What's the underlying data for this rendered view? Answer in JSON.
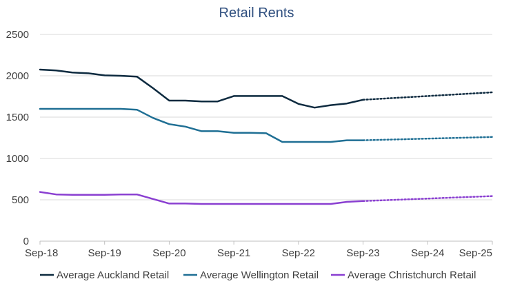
{
  "chart_data": {
    "type": "line",
    "title": "Retail Rents",
    "xlabel": "",
    "ylabel": "",
    "ylim": [
      0,
      2500
    ],
    "y_ticks": [
      0,
      500,
      1000,
      1500,
      2000,
      2500
    ],
    "x_range": [
      "2018-09",
      "2025-09"
    ],
    "x_tick_labels": [
      "Sep-18",
      "Sep-19",
      "Sep-20",
      "Sep-21",
      "Sep-22",
      "Sep-23",
      "Sep-24",
      "Sep-25"
    ],
    "grid": "horizontal",
    "legend_position": "bottom",
    "series": [
      {
        "name": "Average Auckland Retail",
        "color": "#0d2a3f",
        "actual": [
          [
            "2018-09",
            2075
          ],
          [
            "2018-12",
            2065
          ],
          [
            "2019-03",
            2040
          ],
          [
            "2019-06",
            2030
          ],
          [
            "2019-09",
            2005
          ],
          [
            "2019-12",
            2000
          ],
          [
            "2020-03",
            1990
          ],
          [
            "2020-06",
            1850
          ],
          [
            "2020-09",
            1700
          ],
          [
            "2020-12",
            1700
          ],
          [
            "2021-03",
            1690
          ],
          [
            "2021-06",
            1690
          ],
          [
            "2021-09",
            1755
          ],
          [
            "2021-12",
            1755
          ],
          [
            "2022-03",
            1755
          ],
          [
            "2022-06",
            1755
          ],
          [
            "2022-09",
            1660
          ],
          [
            "2022-12",
            1615
          ],
          [
            "2023-03",
            1645
          ],
          [
            "2023-06",
            1665
          ],
          [
            "2023-09",
            1710
          ]
        ],
        "forecast": [
          [
            "2023-09",
            1710
          ],
          [
            "2024-09",
            1755
          ],
          [
            "2025-09",
            1800
          ]
        ]
      },
      {
        "name": "Average Wellington Retail",
        "color": "#1f6f94",
        "actual": [
          [
            "2018-09",
            1600
          ],
          [
            "2018-12",
            1600
          ],
          [
            "2019-03",
            1600
          ],
          [
            "2019-06",
            1600
          ],
          [
            "2019-09",
            1600
          ],
          [
            "2019-12",
            1600
          ],
          [
            "2020-03",
            1590
          ],
          [
            "2020-06",
            1490
          ],
          [
            "2020-09",
            1415
          ],
          [
            "2020-12",
            1385
          ],
          [
            "2021-03",
            1330
          ],
          [
            "2021-06",
            1330
          ],
          [
            "2021-09",
            1310
          ],
          [
            "2021-12",
            1310
          ],
          [
            "2022-03",
            1305
          ],
          [
            "2022-06",
            1200
          ],
          [
            "2022-09",
            1200
          ],
          [
            "2022-12",
            1200
          ],
          [
            "2023-03",
            1200
          ],
          [
            "2023-06",
            1220
          ],
          [
            "2023-09",
            1220
          ]
        ],
        "forecast": [
          [
            "2023-09",
            1220
          ],
          [
            "2024-09",
            1240
          ],
          [
            "2025-09",
            1260
          ]
        ]
      },
      {
        "name": "Average Christchurch Retail",
        "color": "#8a3fd1",
        "actual": [
          [
            "2018-09",
            595
          ],
          [
            "2018-12",
            565
          ],
          [
            "2019-03",
            560
          ],
          [
            "2019-06",
            560
          ],
          [
            "2019-09",
            560
          ],
          [
            "2019-12",
            565
          ],
          [
            "2020-03",
            565
          ],
          [
            "2020-06",
            510
          ],
          [
            "2020-09",
            455
          ],
          [
            "2020-12",
            455
          ],
          [
            "2021-03",
            450
          ],
          [
            "2021-06",
            450
          ],
          [
            "2021-09",
            450
          ],
          [
            "2021-12",
            450
          ],
          [
            "2022-03",
            450
          ],
          [
            "2022-06",
            450
          ],
          [
            "2022-09",
            450
          ],
          [
            "2022-12",
            450
          ],
          [
            "2023-03",
            450
          ],
          [
            "2023-06",
            475
          ],
          [
            "2023-09",
            485
          ]
        ],
        "forecast": [
          [
            "2023-09",
            485
          ],
          [
            "2024-09",
            515
          ],
          [
            "2025-09",
            545
          ]
        ]
      }
    ]
  }
}
